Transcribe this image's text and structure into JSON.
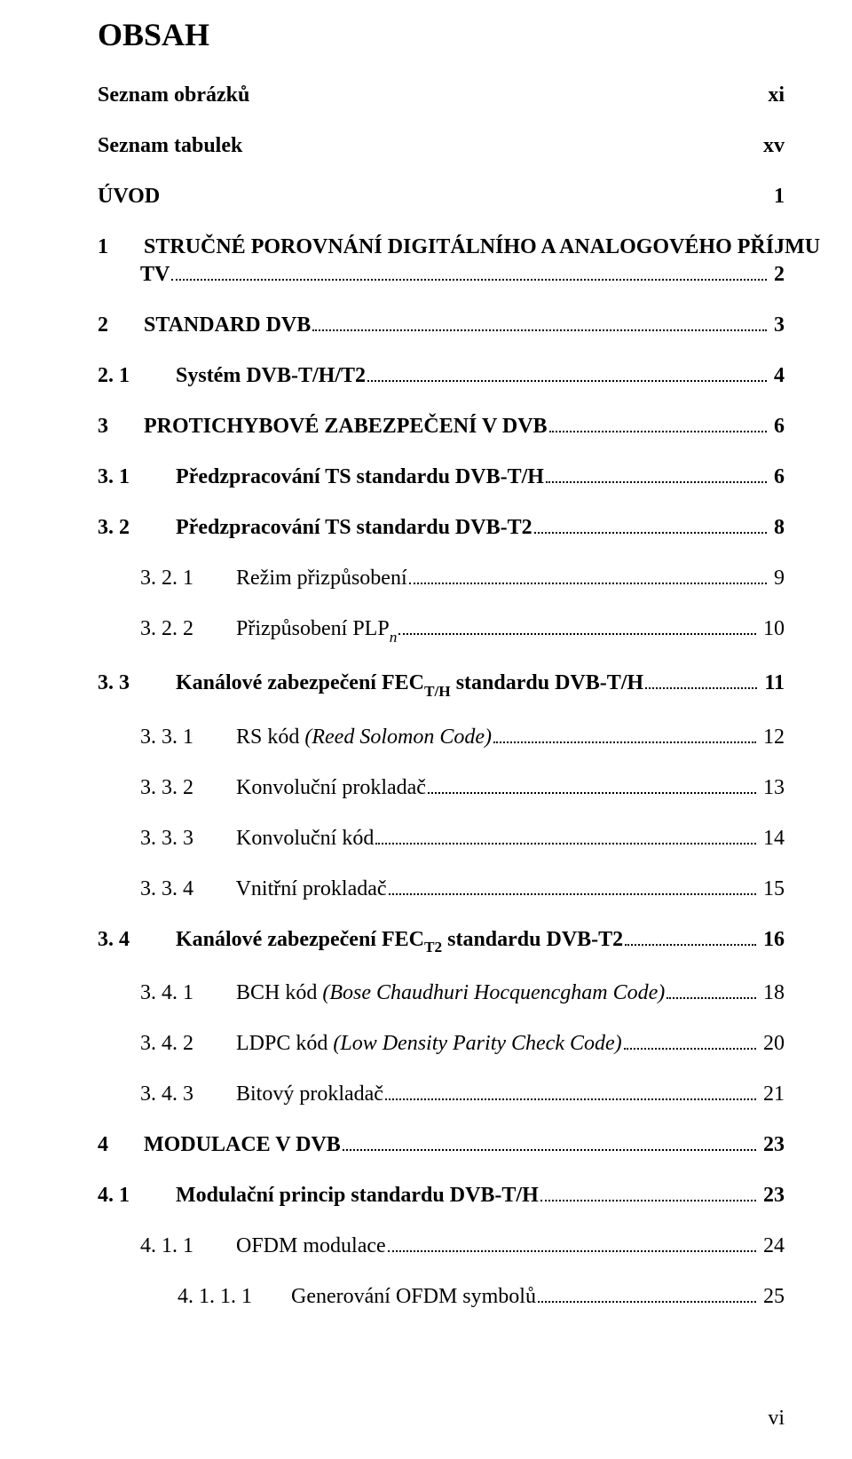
{
  "title": "OBSAH",
  "footer": "vi",
  "entries": [
    {
      "num": "",
      "label": "Seznam obrázků",
      "page": "xi",
      "level": 0,
      "bold": true,
      "dots": false
    },
    {
      "num": "",
      "label": "Seznam tabulek",
      "page": "xv",
      "level": 0,
      "bold": true,
      "dots": false
    },
    {
      "num": "",
      "label": "ÚVOD",
      "page": "1",
      "level": 0,
      "bold": true,
      "dots": false
    },
    {
      "num": "1",
      "label": "STRUČNÉ POROVNÁNÍ DIGITÁLNÍHO A ANALOGOVÉHO PŘÍJMU",
      "label2": "TV",
      "page": "2",
      "level": 1,
      "bold": true,
      "dots": true,
      "hangSecond": true
    },
    {
      "num": "2",
      "label": "STANDARD DVB",
      "page": "3",
      "level": 1,
      "bold": true,
      "dots": true
    },
    {
      "num": "2. 1",
      "label": "Systém DVB-T/H/T2",
      "page": "4",
      "level": 1,
      "bold": true,
      "dots": true
    },
    {
      "num": "3",
      "label": "PROTICHYBOVÉ ZABEZPEČENÍ V DVB",
      "page": "6",
      "level": 1,
      "bold": true,
      "dots": true
    },
    {
      "num": "3. 1",
      "label": "Předzpracování TS standardu DVB-T/H",
      "page": "6",
      "level": 1,
      "bold": true,
      "dots": true
    },
    {
      "num": "3. 2",
      "label": "Předzpracování TS standardu DVB-T2",
      "page": "8",
      "level": 1,
      "bold": true,
      "dots": true
    },
    {
      "num": "3. 2. 1",
      "label": "Režim přizpůsobení",
      "page": "9",
      "level": 2,
      "bold": false,
      "dots": true
    },
    {
      "num": "3. 2. 2",
      "label": "Přizpůsobení PLP",
      "sub_i": "n",
      "page": "10",
      "level": 2,
      "bold": false,
      "dots": true
    },
    {
      "num": "3. 3",
      "label": "Kanálové zabezpečení FEC",
      "sub": "T/H",
      "tail": " standardu DVB-T/H",
      "page": "11",
      "level": 1,
      "bold": true,
      "dots": true
    },
    {
      "num": "3. 3. 1",
      "label": "RS kód ",
      "italic_tail": "(Reed Solomon Code)",
      "page": "12",
      "level": 2,
      "bold": false,
      "dots": true
    },
    {
      "num": "3. 3. 2",
      "label": "Konvoluční prokladač",
      "page": "13",
      "level": 2,
      "bold": false,
      "dots": true
    },
    {
      "num": "3. 3. 3",
      "label": "Konvoluční kód",
      "page": "14",
      "level": 2,
      "bold": false,
      "dots": true
    },
    {
      "num": "3. 3. 4",
      "label": "Vnitřní prokladač",
      "page": "15",
      "level": 2,
      "bold": false,
      "dots": true
    },
    {
      "num": "3. 4",
      "label": "Kanálové zabezpečení FEC",
      "sub": "T2",
      "tail": " standardu DVB-T2",
      "page": "16",
      "level": 1,
      "bold": true,
      "dots": true
    },
    {
      "num": "3. 4. 1",
      "label": "BCH kód ",
      "italic_tail": "(Bose Chaudhuri Hocquencgham Code)",
      "page": "18",
      "level": 2,
      "bold": false,
      "dots": true
    },
    {
      "num": "3. 4. 2",
      "label": "LDPC kód ",
      "italic_tail": "(Low Density Parity Check Code)",
      "page": "20",
      "level": 2,
      "bold": false,
      "dots": true
    },
    {
      "num": "3. 4. 3",
      "label": "Bitový prokladač",
      "page": "21",
      "level": 2,
      "bold": false,
      "dots": true
    },
    {
      "num": "4",
      "label": "MODULACE V DVB",
      "page": "23",
      "level": 1,
      "bold": true,
      "dots": true
    },
    {
      "num": "4. 1",
      "label": "Modulační princip standardu DVB-T/H",
      "page": "23",
      "level": 1,
      "bold": true,
      "dots": true
    },
    {
      "num": "4. 1. 1",
      "label": "OFDM modulace",
      "page": "24",
      "level": 2,
      "bold": false,
      "dots": true
    },
    {
      "num": "4. 1. 1. 1",
      "label": "Generování OFDM symbolů",
      "page": "25",
      "level": 3,
      "bold": false,
      "dots": true
    }
  ]
}
